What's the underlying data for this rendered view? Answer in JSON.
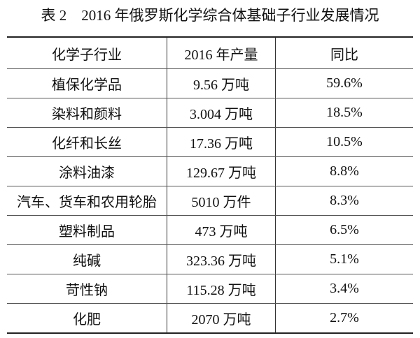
{
  "title": "表 2　2016 年俄罗斯化学综合体基础子行业发展情况",
  "table": {
    "header": [
      "化学子行业",
      "2016 年产量",
      "同比"
    ],
    "rows": [
      [
        "植保化学品",
        "9.56 万吨",
        "59.6%"
      ],
      [
        "染料和颜料",
        "3.004 万吨",
        "18.5%"
      ],
      [
        "化纤和长丝",
        "17.36 万吨",
        "10.5%"
      ],
      [
        "涂料油漆",
        "129.67 万吨",
        "8.8%"
      ],
      [
        "汽车、货车和农用轮胎",
        "5010 万件",
        "8.3%"
      ],
      [
        "塑料制品",
        "473 万吨",
        "6.5%"
      ],
      [
        "纯碱",
        "323.36 万吨",
        "5.1%"
      ],
      [
        "苛性钠",
        "115.28 万吨",
        "3.4%"
      ],
      [
        "化肥",
        "2070 万吨",
        "2.7%"
      ]
    ]
  }
}
